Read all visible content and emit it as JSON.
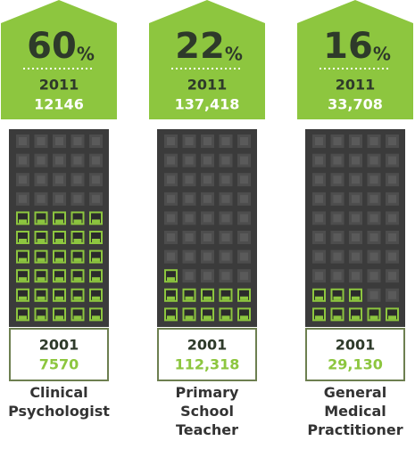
{
  "chart_data": {
    "type": "waffle",
    "categories": [
      "Clinical Psychologist",
      "Primary School Teacher",
      "General Medical Practitioner"
    ],
    "values": [
      60,
      22,
      16
    ],
    "unit": "%",
    "year_recent": "2011",
    "counts_recent": [
      "12146",
      "137,418",
      "33,708"
    ],
    "year_past": "2001",
    "counts_past": [
      "7570",
      "112,318",
      "29,130"
    ],
    "color": "#8dc63f",
    "grid_columns": 5,
    "grid_rows": 10
  }
}
